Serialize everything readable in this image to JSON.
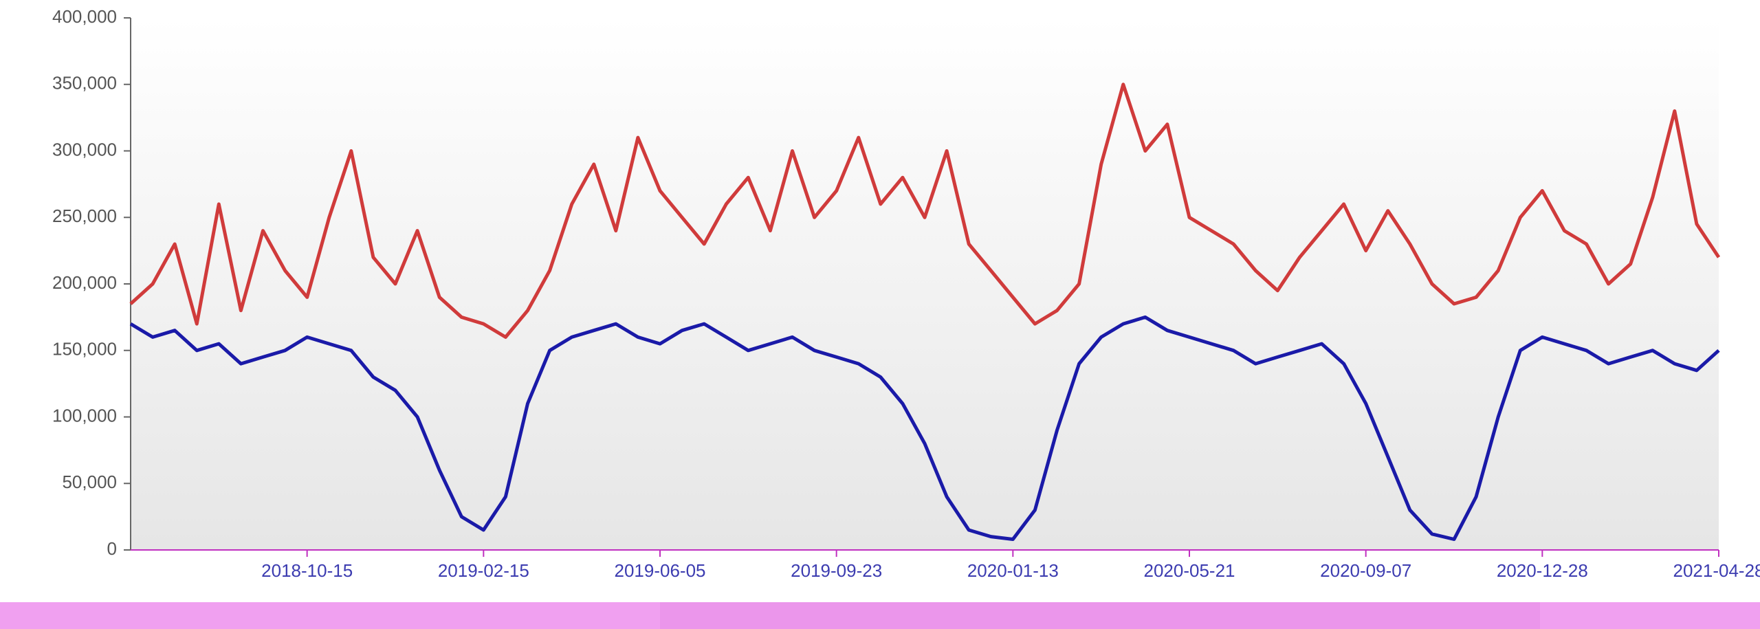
{
  "chart_data": {
    "type": "line",
    "categories": [
      null,
      null,
      null,
      null,
      null,
      null,
      null,
      null,
      "2018-10-15",
      null,
      null,
      null,
      null,
      null,
      null,
      null,
      "2019-02-15",
      null,
      null,
      null,
      null,
      null,
      null,
      null,
      "2019-06-05",
      null,
      null,
      null,
      null,
      null,
      null,
      null,
      "2019-09-23",
      null,
      null,
      null,
      null,
      null,
      null,
      null,
      "2020-01-13",
      null,
      null,
      null,
      null,
      null,
      null,
      null,
      "2020-05-21",
      null,
      null,
      null,
      null,
      null,
      null,
      null,
      "2020-09-07",
      null,
      null,
      null,
      null,
      null,
      null,
      null,
      "2020-12-28",
      null,
      null,
      null,
      null,
      null,
      null,
      null,
      "2021-04-28"
    ],
    "series": [
      {
        "color": "#d03b3b",
        "values": [
          185000,
          200000,
          230000,
          170000,
          260000,
          180000,
          240000,
          210000,
          190000,
          250000,
          300000,
          220000,
          200000,
          240000,
          190000,
          175000,
          170000,
          160000,
          180000,
          210000,
          260000,
          290000,
          240000,
          310000,
          270000,
          250000,
          230000,
          260000,
          280000,
          240000,
          300000,
          250000,
          270000,
          310000,
          260000,
          280000,
          250000,
          300000,
          230000,
          210000,
          190000,
          170000,
          180000,
          200000,
          290000,
          350000,
          300000,
          320000,
          250000,
          240000,
          230000,
          210000,
          195000,
          220000,
          240000,
          260000,
          225000,
          255000,
          230000,
          200000,
          185000,
          190000,
          210000,
          250000,
          270000,
          240000,
          230000,
          200000,
          215000,
          265000,
          330000,
          245000,
          220000
        ]
      },
      {
        "color": "#1a1aa8",
        "values": [
          170000,
          160000,
          165000,
          150000,
          155000,
          140000,
          145000,
          150000,
          160000,
          155000,
          150000,
          130000,
          120000,
          100000,
          60000,
          25000,
          15000,
          40000,
          110000,
          150000,
          160000,
          165000,
          170000,
          160000,
          155000,
          165000,
          170000,
          160000,
          150000,
          155000,
          160000,
          150000,
          145000,
          140000,
          130000,
          110000,
          80000,
          40000,
          15000,
          10000,
          8000,
          30000,
          90000,
          140000,
          160000,
          170000,
          175000,
          165000,
          160000,
          155000,
          150000,
          140000,
          145000,
          150000,
          155000,
          140000,
          110000,
          70000,
          30000,
          12000,
          8000,
          40000,
          100000,
          150000,
          160000,
          155000,
          150000,
          140000,
          145000,
          150000,
          140000,
          135000,
          150000
        ]
      }
    ],
    "ylim": [
      0,
      400000
    ],
    "yticks": [
      {
        "value": 0,
        "label": "0"
      },
      {
        "value": 50000,
        "label": "50,000"
      },
      {
        "value": 100000,
        "label": "100,000"
      },
      {
        "value": 150000,
        "label": "150,000"
      },
      {
        "value": 200000,
        "label": "200,000"
      },
      {
        "value": 250000,
        "label": "250,000"
      },
      {
        "value": 300000,
        "label": "300,000"
      },
      {
        "value": 350000,
        "label": "350,000"
      },
      {
        "value": 400000,
        "label": "400,000"
      }
    ],
    "grid": false
  }
}
